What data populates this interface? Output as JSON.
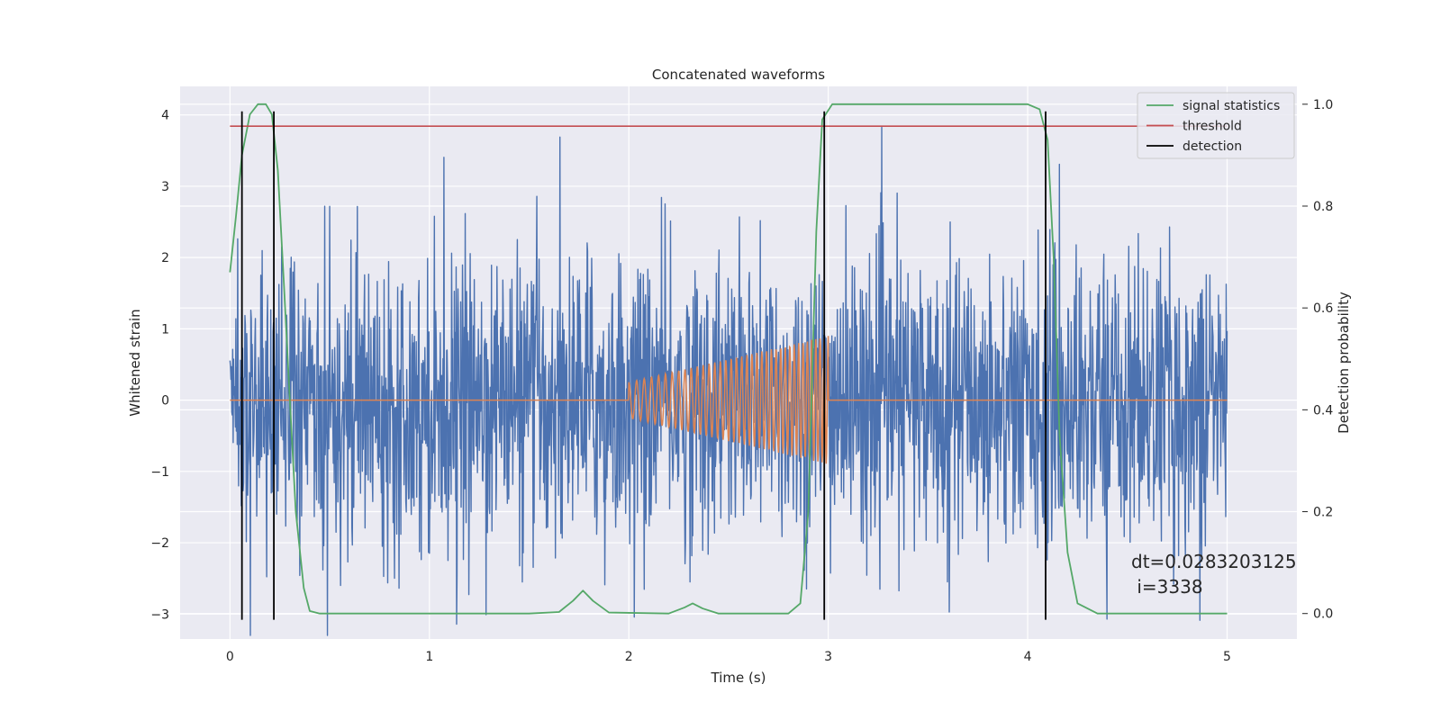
{
  "chart_data": {
    "type": "line",
    "title": "Concatenated waveforms",
    "xlabel": "Time (s)",
    "ylabel": "Whitened strain",
    "ylabel_right": "Detection probability",
    "xlim": [
      -0.25,
      5.35
    ],
    "ylim": [
      -3.35,
      4.4
    ],
    "ylim_right": [
      -0.05,
      1.035
    ],
    "xticks": [
      0,
      1,
      2,
      3,
      4,
      5
    ],
    "xtick_labels": [
      "0",
      "1",
      "2",
      "3",
      "4",
      "5"
    ],
    "yticks": [
      -3,
      -2,
      -1,
      0,
      1,
      2,
      3,
      4
    ],
    "ytick_labels": [
      "−3",
      "−2",
      "−1",
      "0",
      "1",
      "2",
      "3",
      "4"
    ],
    "yticks_right": [
      0.0,
      0.2,
      0.4,
      0.6,
      0.8,
      1.0
    ],
    "ytick_labels_right": [
      "0.0",
      "0.2",
      "0.4",
      "0.6",
      "0.8",
      "1.0"
    ],
    "grid": true,
    "legend_position": "top-right",
    "series": [
      {
        "name": "",
        "axis": "left",
        "kind": "noise",
        "color": "#4c72b0",
        "x_range": [
          0,
          5
        ],
        "approx_sigma": 1.0
      },
      {
        "name": "",
        "axis": "left",
        "kind": "chirp",
        "color": "#dd8452",
        "x_range": [
          0,
          5
        ],
        "chirp_start": 2.0,
        "chirp_end": 3.0,
        "amplitude_start": 0.25,
        "amplitude_end": 0.9
      },
      {
        "name": "signal statistics",
        "axis": "right",
        "color": "#55a868",
        "x": [
          0.0,
          0.03,
          0.06,
          0.1,
          0.14,
          0.18,
          0.21,
          0.24,
          0.27,
          0.3,
          0.33,
          0.37,
          0.4,
          0.45,
          0.6,
          1.0,
          1.5,
          1.65,
          1.72,
          1.77,
          1.82,
          1.9,
          2.2,
          2.28,
          2.32,
          2.37,
          2.45,
          2.8,
          2.86,
          2.9,
          2.94,
          2.97,
          3.02,
          3.5,
          4.0,
          4.06,
          4.1,
          4.13,
          4.16,
          4.2,
          4.25,
          4.35,
          5.0
        ],
        "y": [
          0.67,
          0.78,
          0.9,
          0.98,
          1.0,
          1.0,
          0.98,
          0.87,
          0.65,
          0.42,
          0.2,
          0.05,
          0.005,
          0.0,
          0.0,
          0.0,
          0.0,
          0.003,
          0.025,
          0.045,
          0.025,
          0.002,
          0.0,
          0.012,
          0.02,
          0.01,
          0.0,
          0.0,
          0.02,
          0.2,
          0.75,
          0.97,
          1.0,
          1.0,
          1.0,
          0.99,
          0.93,
          0.7,
          0.35,
          0.12,
          0.02,
          0.0,
          0.0
        ]
      },
      {
        "name": "threshold",
        "axis": "right",
        "color": "#c44e52",
        "x": [
          0,
          5
        ],
        "y": [
          0.957,
          0.957
        ]
      },
      {
        "name": "detection",
        "axis": "left",
        "kind": "vlines",
        "color": "#000000",
        "x": [
          0.06,
          0.22,
          2.98,
          4.09
        ],
        "y_range": [
          -3.08,
          4.05
        ]
      }
    ],
    "annotation": [
      "dt=0.0283203125",
      " i=3338"
    ],
    "colors": {
      "plot_background": "#eaeaf2",
      "grid": "#ffffff"
    }
  }
}
